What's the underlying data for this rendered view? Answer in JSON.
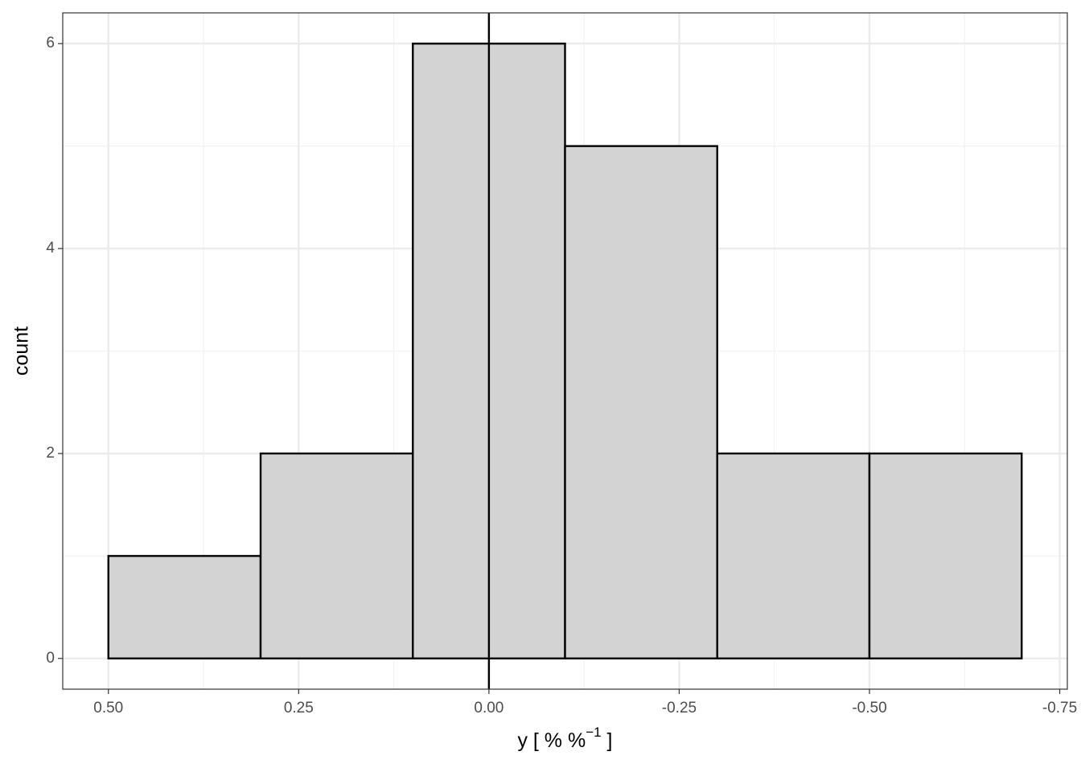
{
  "chart_data": {
    "type": "histogram",
    "bins": [
      0.5,
      0.3,
      0.1,
      -0.1,
      -0.3,
      -0.5,
      -0.7
    ],
    "values": [
      1,
      2,
      6,
      5,
      2,
      2
    ],
    "color": "#d3d3d3",
    "edge_color": "#000000",
    "xlim": [
      0.56,
      -0.76
    ],
    "ylim": [
      -0.3,
      6.3
    ],
    "xticks": [
      {
        "value": 0.5,
        "label": "0.50"
      },
      {
        "value": 0.25,
        "label": "0.25"
      },
      {
        "value": 0,
        "label": "0.00"
      },
      {
        "value": -0.25,
        "label": "-0.25"
      },
      {
        "value": -0.5,
        "label": "-0.50"
      },
      {
        "value": -0.75,
        "label": "-0.75"
      }
    ],
    "yticks": [
      0,
      2,
      4,
      6
    ],
    "xminor": [
      0.375,
      0.125,
      -0.125,
      -0.375,
      -0.625
    ],
    "yminor": [
      1,
      3,
      5
    ],
    "vline": 0,
    "grid": true,
    "xlabel": [
      "y [ % %",
      "−1",
      " ]"
    ],
    "ylabel": "count"
  }
}
